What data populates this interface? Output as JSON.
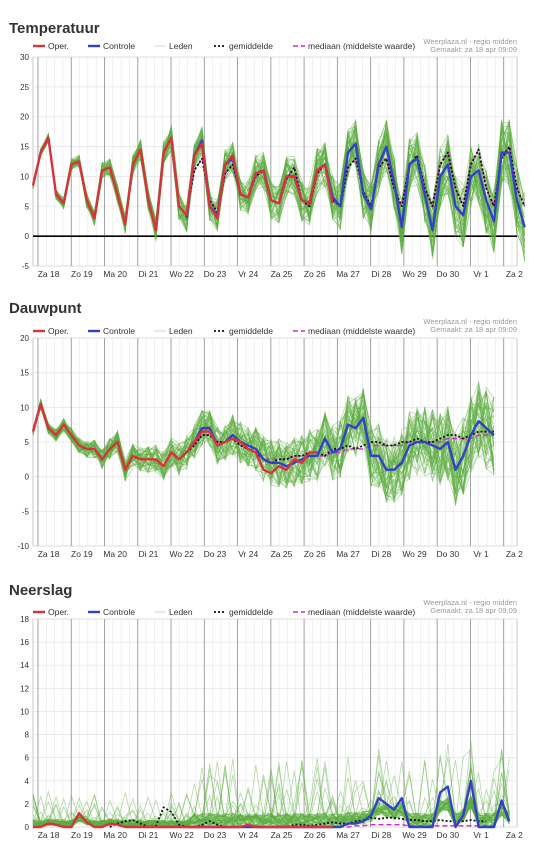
{
  "colors": {
    "oper": "#d8323c",
    "controle": "#3340c8",
    "leden": "#5cae3f",
    "gemiddelde": "#111111",
    "mediaan": "#d426d4",
    "grid": "#e6e6e6",
    "daygrid": "#999999"
  },
  "legend": {
    "oper": "Oper.",
    "controle": "Controle",
    "leden": "Leden",
    "gemiddelde": "gemiddelde",
    "mediaan": "mediaan (middelste waarde)"
  },
  "credit": {
    "source": "Weerplaza.nl - regio midden",
    "made": "Gemaakt: za 18 apr 09:09"
  },
  "days": [
    "Za 18",
    "Zo 19",
    "Ma 20",
    "Di 21",
    "Wo 22",
    "Do 23",
    "Vr 24",
    "Za 25",
    "Zo 26",
    "Ma 27",
    "Di 28",
    "Wo 29",
    "Do 30",
    "Vr 1",
    "Za 2"
  ],
  "chart_data": [
    {
      "type": "line",
      "title": "Temperatuur",
      "ylim": [
        -5,
        30
      ],
      "yticks": [
        "30",
        "25",
        "20",
        "15",
        "10",
        "5",
        "0",
        "-5"
      ],
      "zero_line": true,
      "ensemble_members": 50,
      "oper": [
        8.5,
        14,
        16.5,
        7,
        5.5,
        12,
        12.5,
        6,
        3,
        11,
        11.5,
        7,
        2,
        12,
        14.5,
        6,
        1,
        14,
        16.5,
        5,
        3.5,
        13.5,
        15.5,
        5,
        3,
        12,
        13.5,
        7,
        6.5,
        10.5,
        11,
        6,
        5.5,
        10,
        10,
        6,
        5.5,
        11,
        12,
        5.5
      ],
      "controle": [
        null,
        null,
        null,
        null,
        null,
        null,
        null,
        null,
        null,
        null,
        null,
        null,
        null,
        null,
        null,
        null,
        null,
        null,
        null,
        null,
        3,
        13.5,
        16,
        5,
        3.5,
        12,
        13,
        7,
        6.5,
        10.5,
        11,
        6,
        5.5,
        10,
        10,
        6,
        5.5,
        11,
        12,
        6.5,
        5,
        14,
        15.5,
        7,
        4.5,
        12,
        15,
        9,
        1.5,
        12,
        13,
        7,
        1,
        10,
        12,
        5,
        3.5,
        10,
        11,
        6,
        2.5,
        14,
        14,
        6,
        1.5
      ],
      "gemiddelde": [
        null,
        null,
        null,
        null,
        null,
        null,
        null,
        null,
        null,
        null,
        null,
        null,
        null,
        null,
        null,
        null,
        null,
        null,
        null,
        null,
        4,
        11,
        13,
        6,
        4,
        10.5,
        12,
        7,
        6.5,
        10,
        11,
        6,
        5.5,
        9.5,
        11.5,
        6,
        5,
        10.5,
        12,
        6,
        5,
        11.5,
        13,
        7.5,
        5,
        11.5,
        13,
        8,
        5,
        12,
        13.5,
        8,
        5,
        12,
        14,
        8,
        5,
        12,
        14.5,
        8,
        5,
        13,
        15,
        8,
        5
      ],
      "mediaan": [
        null,
        null,
        null,
        null,
        null,
        null,
        null,
        null,
        null,
        null,
        null,
        null,
        null,
        null,
        null,
        null,
        null,
        null,
        null,
        null,
        4,
        11,
        13,
        6,
        4,
        10.5,
        12,
        7,
        6.5,
        10,
        11,
        6,
        5.5,
        9.5,
        11.5,
        6,
        5,
        10.5,
        12,
        6,
        5,
        11.5,
        13,
        7.5,
        5,
        11.5,
        13,
        8,
        5,
        12,
        13.5,
        8,
        5,
        12,
        14,
        8,
        5,
        12,
        14.5,
        8,
        5,
        13,
        15,
        8,
        5
      ]
    },
    {
      "type": "line",
      "title": "Dauwpunt",
      "ylim": [
        -10,
        20
      ],
      "yticks": [
        "20",
        "15",
        "10",
        "5",
        "0",
        "-5",
        "-10"
      ],
      "zero_line": false,
      "ensemble_members": 50,
      "oper": [
        6.5,
        10.5,
        7,
        6,
        7.5,
        6,
        4.5,
        4,
        4,
        2.5,
        4,
        5,
        1,
        3,
        2.5,
        2.5,
        2.5,
        1.5,
        3.5,
        2.5,
        3.5,
        5,
        6.5,
        6.5,
        4.5,
        5,
        5.5,
        5,
        4,
        3.5,
        1,
        0.5,
        1.5,
        1,
        2.5,
        2,
        3.5,
        3.5
      ],
      "controle": [
        null,
        null,
        null,
        null,
        null,
        null,
        null,
        null,
        null,
        null,
        null,
        null,
        null,
        null,
        null,
        null,
        null,
        null,
        null,
        null,
        3.5,
        5,
        7,
        7,
        4.5,
        5,
        6,
        5,
        4.5,
        4,
        2.5,
        2,
        2,
        1.5,
        2,
        2.5,
        3,
        3,
        5.5,
        3.5,
        4,
        7.5,
        7,
        8.5,
        3,
        3,
        1,
        1,
        2,
        4.5,
        5,
        5,
        4.5,
        4,
        5,
        1,
        3,
        6,
        8,
        7,
        6
      ],
      "gemiddelde": [
        null,
        null,
        null,
        null,
        null,
        null,
        null,
        null,
        null,
        null,
        null,
        null,
        null,
        null,
        null,
        null,
        null,
        null,
        null,
        null,
        3.5,
        4.5,
        6,
        6,
        5,
        5,
        5.5,
        4.5,
        4,
        3.5,
        2.5,
        2,
        2.5,
        2.5,
        3,
        3,
        3.5,
        3.5,
        3,
        4,
        4,
        4.5,
        4,
        4.5,
        5,
        5,
        4.5,
        4.5,
        5,
        5,
        5.5,
        5,
        5,
        5.5,
        6,
        6,
        5.5,
        6,
        6.5,
        6.5,
        6.5
      ],
      "mediaan": [
        null,
        null,
        null,
        null,
        null,
        null,
        null,
        null,
        null,
        null,
        null,
        null,
        null,
        null,
        null,
        null,
        null,
        null,
        null,
        null,
        3.5,
        4.5,
        6,
        6,
        5,
        5,
        5.5,
        4.5,
        4,
        3.5,
        2.5,
        2.5,
        2.5,
        2.5,
        3,
        3,
        3,
        3,
        3,
        3.5,
        3.5,
        4,
        4,
        4,
        4.5,
        4.5,
        4.5,
        4.5,
        4.5,
        5,
        5,
        5,
        5,
        5,
        5.5,
        5.5,
        5.5,
        5.5,
        6,
        6,
        6
      ]
    },
    {
      "type": "line",
      "title": "Neerslag",
      "ylim": [
        0,
        18
      ],
      "yticks": [
        "18",
        "16",
        "14",
        "12",
        "10",
        "8",
        "6",
        "4",
        "2",
        "0"
      ],
      "zero_line": false,
      "ensemble_members": 50,
      "oper": [
        0,
        0,
        0.3,
        0.2,
        0,
        0,
        1.2,
        0.4,
        0,
        0,
        0.3,
        0.2,
        0,
        0,
        0,
        0,
        0,
        0,
        0,
        0,
        0,
        0,
        0,
        0,
        0,
        0,
        0,
        0,
        0.2,
        0,
        0,
        0,
        0,
        0,
        0,
        0,
        0,
        0,
        0,
        0
      ],
      "controle": [
        null,
        null,
        null,
        null,
        null,
        null,
        null,
        null,
        null,
        null,
        null,
        null,
        null,
        null,
        null,
        null,
        null,
        null,
        null,
        null,
        0,
        0,
        0,
        0,
        0,
        0,
        0,
        0,
        0,
        0,
        0,
        0,
        0,
        0,
        0,
        0,
        0,
        0,
        0,
        0,
        0,
        0.3,
        0.3,
        0.5,
        1,
        2.5,
        2,
        1.5,
        2.5,
        0,
        0,
        0,
        0,
        3,
        3.5,
        0,
        1,
        4,
        0,
        0,
        0,
        2.3,
        0.5
      ],
      "gemiddelde": [
        null,
        null,
        null,
        null,
        null,
        null,
        null,
        null,
        null,
        null,
        0,
        0.3,
        0.5,
        0.6,
        0.3,
        0,
        0.1,
        1.7,
        1.3,
        0.2,
        0,
        0,
        0.2,
        0.5,
        0.2,
        0,
        0,
        0,
        0,
        0,
        0,
        0,
        0,
        0,
        0.2,
        0.2,
        0.1,
        0.2,
        0.3,
        0.4,
        0.3,
        0.3,
        0.5,
        0.6,
        0.8,
        0.7,
        0.8,
        0.8,
        0.7,
        0.6,
        0.6,
        0.5,
        0.5,
        0.6,
        0.5,
        0.5,
        0.5,
        0.6,
        0.5,
        0.5
      ],
      "mediaan": [
        null,
        null,
        null,
        null,
        null,
        null,
        null,
        null,
        null,
        null,
        null,
        null,
        null,
        null,
        null,
        null,
        null,
        null,
        null,
        null,
        0,
        0,
        0,
        0,
        0,
        0,
        0,
        0,
        0,
        0,
        0,
        0,
        0,
        0,
        0,
        0,
        0,
        0,
        0,
        0,
        0,
        0,
        0.1,
        0.1,
        0.2,
        0.2,
        0.2,
        0.2,
        0.2,
        0.1,
        0.1,
        0.1,
        0.1,
        0.1,
        0.1,
        0.1,
        0.1,
        0.1,
        0.1,
        0.1,
        0.1
      ]
    }
  ]
}
